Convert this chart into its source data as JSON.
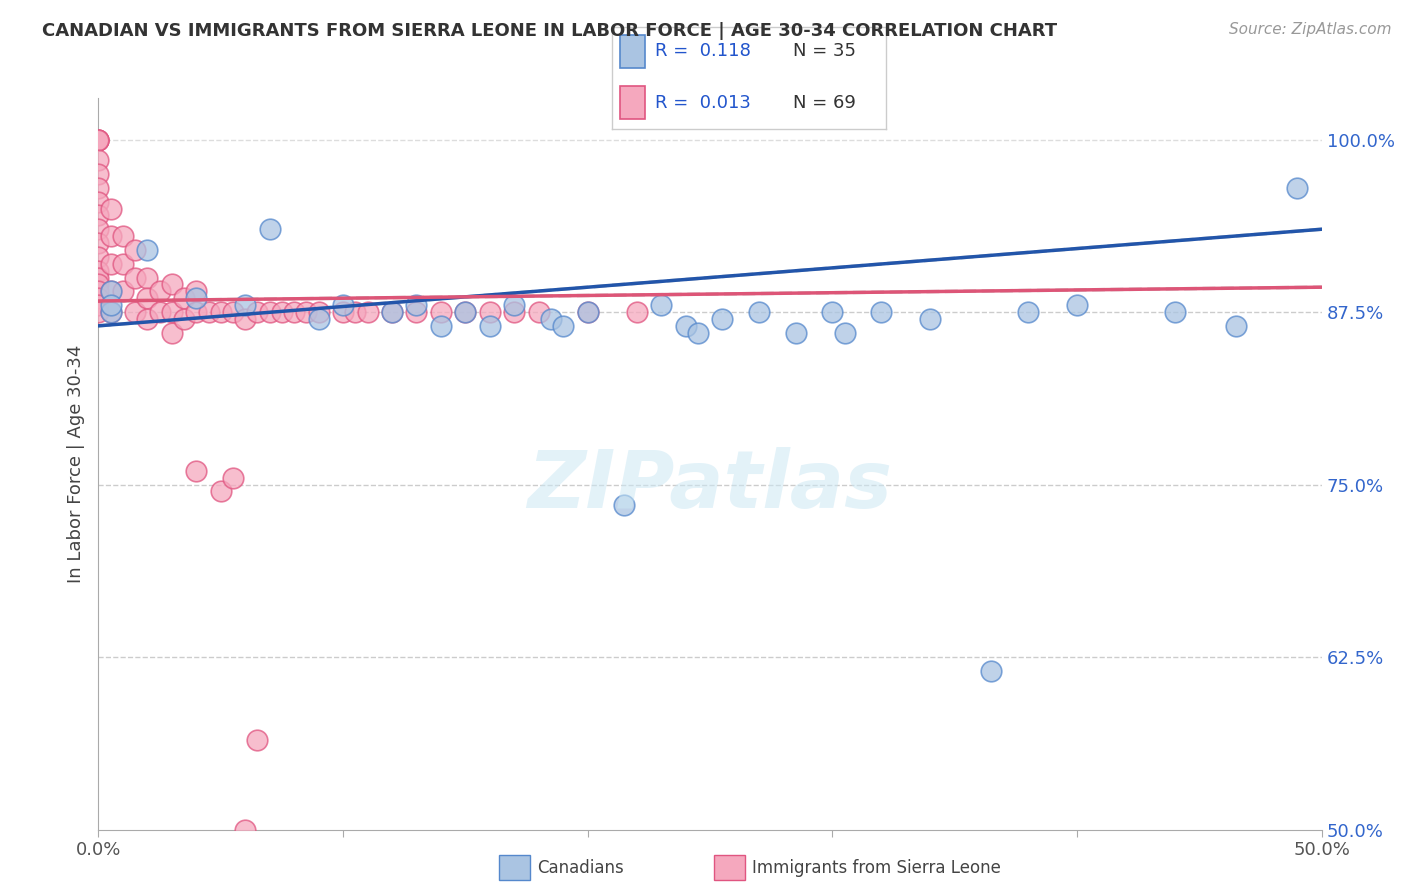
{
  "title": "CANADIAN VS IMMIGRANTS FROM SIERRA LEONE IN LABOR FORCE | AGE 30-34 CORRELATION CHART",
  "source": "Source: ZipAtlas.com",
  "ylabel": "In Labor Force | Age 30-34",
  "xmin": 0.0,
  "xmax": 0.5,
  "ymin": 0.5,
  "ymax": 1.03,
  "right_ytick_labels": [
    "100.0%",
    "87.5%",
    "75.0%",
    "62.5%",
    "50.0%"
  ],
  "right_ytick_vals": [
    1.0,
    0.875,
    0.75,
    0.625,
    0.5
  ],
  "legend_r1": "R =  0.118",
  "legend_n1": "N = 35",
  "legend_r2": "R =  0.013",
  "legend_n2": "N = 69",
  "canadians_color": "#aac4e2",
  "sierra_leone_color": "#f5a8be",
  "canadians_edge": "#5588cc",
  "sierra_leone_edge": "#e05580",
  "trend_blue": "#2255aa",
  "trend_pink": "#dd5577",
  "trend_dashed_color": "#cccccc",
  "watermark": "ZIPatlas",
  "canadians_x": [
    0.005,
    0.005,
    0.005,
    0.02,
    0.04,
    0.06,
    0.07,
    0.09,
    0.1,
    0.12,
    0.13,
    0.14,
    0.15,
    0.16,
    0.17,
    0.185,
    0.19,
    0.2,
    0.215,
    0.23,
    0.24,
    0.245,
    0.255,
    0.27,
    0.285,
    0.3,
    0.305,
    0.32,
    0.34,
    0.365,
    0.38,
    0.4,
    0.44,
    0.465,
    0.49
  ],
  "canadians_y": [
    0.89,
    0.875,
    0.88,
    0.92,
    0.885,
    0.88,
    0.935,
    0.87,
    0.88,
    0.875,
    0.88,
    0.865,
    0.875,
    0.865,
    0.88,
    0.87,
    0.865,
    0.875,
    0.735,
    0.88,
    0.865,
    0.86,
    0.87,
    0.875,
    0.86,
    0.875,
    0.86,
    0.875,
    0.87,
    0.615,
    0.875,
    0.88,
    0.875,
    0.865,
    0.965
  ],
  "sierra_leone_x": [
    0.0,
    0.0,
    0.0,
    0.0,
    0.0,
    0.0,
    0.0,
    0.0,
    0.0,
    0.0,
    0.0,
    0.0,
    0.0,
    0.0,
    0.0,
    0.0,
    0.0,
    0.0,
    0.0,
    0.005,
    0.005,
    0.005,
    0.005,
    0.005,
    0.01,
    0.01,
    0.01,
    0.015,
    0.015,
    0.015,
    0.02,
    0.02,
    0.02,
    0.025,
    0.025,
    0.03,
    0.03,
    0.03,
    0.035,
    0.035,
    0.04,
    0.04,
    0.045,
    0.05,
    0.055,
    0.06,
    0.065,
    0.07,
    0.075,
    0.08,
    0.085,
    0.09,
    0.1,
    0.105,
    0.11,
    0.12,
    0.13,
    0.14,
    0.15,
    0.16,
    0.17,
    0.18,
    0.2,
    0.22,
    0.04,
    0.05,
    0.055,
    0.06,
    0.065
  ],
  "sierra_leone_y": [
    1.0,
    1.0,
    1.0,
    1.0,
    0.985,
    0.975,
    0.965,
    0.955,
    0.945,
    0.935,
    0.925,
    0.915,
    0.905,
    0.9,
    0.895,
    0.89,
    0.885,
    0.88,
    0.875,
    0.95,
    0.93,
    0.91,
    0.89,
    0.875,
    0.93,
    0.91,
    0.89,
    0.92,
    0.9,
    0.875,
    0.9,
    0.885,
    0.87,
    0.89,
    0.875,
    0.895,
    0.875,
    0.86,
    0.885,
    0.87,
    0.89,
    0.875,
    0.875,
    0.875,
    0.875,
    0.87,
    0.875,
    0.875,
    0.875,
    0.875,
    0.875,
    0.875,
    0.875,
    0.875,
    0.875,
    0.875,
    0.875,
    0.875,
    0.875,
    0.875,
    0.875,
    0.875,
    0.875,
    0.875,
    0.76,
    0.745,
    0.755,
    0.5,
    0.565
  ]
}
